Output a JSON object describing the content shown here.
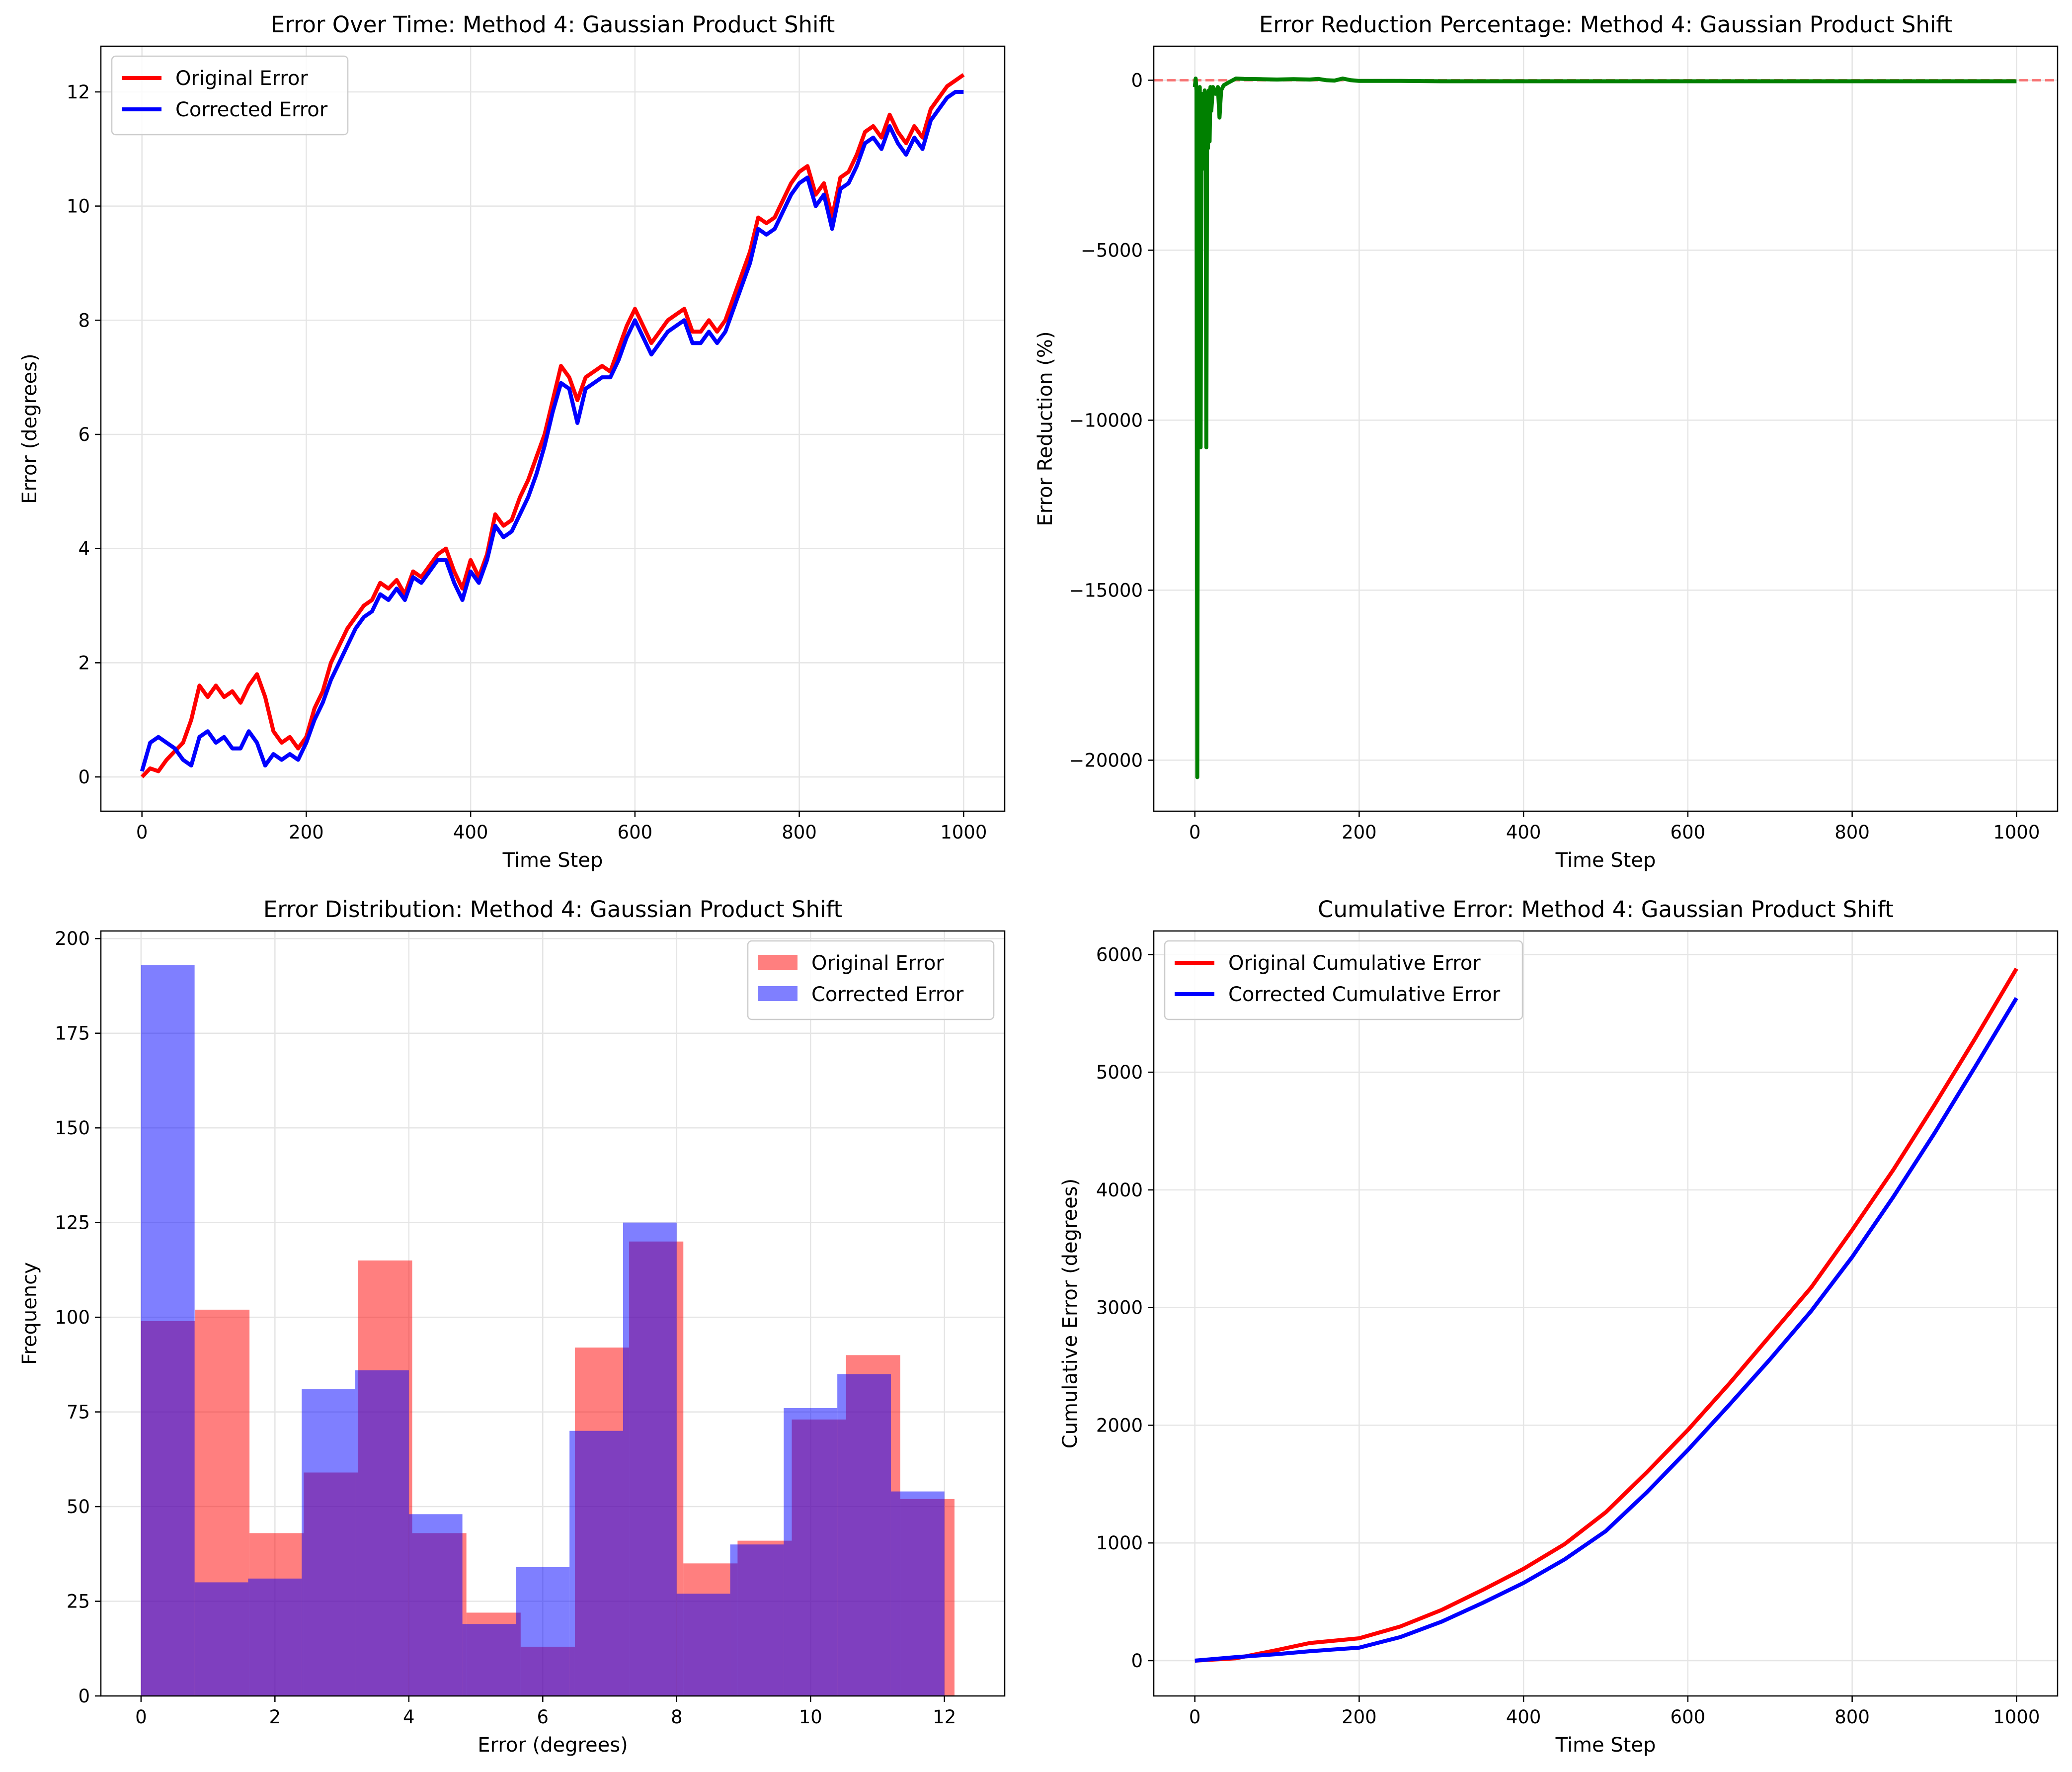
{
  "chart_data": [
    {
      "type": "line",
      "title": "Error Over Time: Method 4: Gaussian Product Shift",
      "xlabel": "Time Step",
      "ylabel": "Error (degrees)",
      "xlim": [
        -50,
        1050
      ],
      "ylim": [
        -0.6,
        12.8
      ],
      "xticks": [
        0,
        200,
        400,
        600,
        800,
        1000
      ],
      "yticks": [
        0,
        2,
        4,
        6,
        8,
        10,
        12
      ],
      "grid": true,
      "legend_position": "top-left",
      "series": [
        {
          "name": "Original Error",
          "color": "#ff0000",
          "x": [
            0,
            10,
            20,
            30,
            40,
            50,
            60,
            70,
            80,
            90,
            100,
            110,
            120,
            130,
            140,
            150,
            160,
            170,
            180,
            190,
            200,
            210,
            220,
            230,
            240,
            250,
            260,
            270,
            280,
            290,
            300,
            310,
            320,
            330,
            340,
            350,
            360,
            370,
            380,
            390,
            400,
            410,
            420,
            430,
            440,
            450,
            460,
            470,
            480,
            490,
            500,
            510,
            520,
            530,
            540,
            550,
            560,
            570,
            580,
            590,
            600,
            610,
            620,
            630,
            640,
            650,
            660,
            670,
            680,
            690,
            700,
            710,
            720,
            730,
            740,
            750,
            760,
            770,
            780,
            790,
            800,
            810,
            820,
            830,
            840,
            850,
            860,
            870,
            880,
            890,
            900,
            910,
            920,
            930,
            940,
            950,
            960,
            970,
            980,
            990,
            1000
          ],
          "values": [
            0.0,
            0.15,
            0.1,
            0.3,
            0.45,
            0.6,
            1.0,
            1.6,
            1.4,
            1.6,
            1.4,
            1.5,
            1.3,
            1.6,
            1.8,
            1.4,
            0.8,
            0.6,
            0.7,
            0.5,
            0.7,
            1.2,
            1.5,
            2.0,
            2.3,
            2.6,
            2.8,
            3.0,
            3.1,
            3.4,
            3.3,
            3.45,
            3.2,
            3.6,
            3.5,
            3.7,
            3.9,
            4.0,
            3.6,
            3.3,
            3.8,
            3.5,
            3.9,
            4.6,
            4.4,
            4.5,
            4.9,
            5.2,
            5.6,
            6.0,
            6.6,
            7.2,
            7.0,
            6.6,
            7.0,
            7.1,
            7.2,
            7.1,
            7.5,
            7.9,
            8.2,
            7.9,
            7.6,
            7.8,
            8.0,
            8.1,
            8.2,
            7.8,
            7.8,
            8.0,
            7.8,
            8.0,
            8.4,
            8.8,
            9.2,
            9.8,
            9.7,
            9.8,
            10.1,
            10.4,
            10.6,
            10.7,
            10.2,
            10.4,
            9.8,
            10.5,
            10.6,
            10.9,
            11.3,
            11.4,
            11.2,
            11.6,
            11.3,
            11.1,
            11.4,
            11.2,
            11.7,
            11.9,
            12.1,
            12.2,
            12.3
          ]
        },
        {
          "name": "Corrected Error",
          "color": "#0000ff",
          "x": [
            0,
            10,
            20,
            30,
            40,
            50,
            60,
            70,
            80,
            90,
            100,
            110,
            120,
            130,
            140,
            150,
            160,
            170,
            180,
            190,
            200,
            210,
            220,
            230,
            240,
            250,
            260,
            270,
            280,
            290,
            300,
            310,
            320,
            330,
            340,
            350,
            360,
            370,
            380,
            390,
            400,
            410,
            420,
            430,
            440,
            450,
            460,
            470,
            480,
            490,
            500,
            510,
            520,
            530,
            540,
            550,
            560,
            570,
            580,
            590,
            600,
            610,
            620,
            630,
            640,
            650,
            660,
            670,
            680,
            690,
            700,
            710,
            720,
            730,
            740,
            750,
            760,
            770,
            780,
            790,
            800,
            810,
            820,
            830,
            840,
            850,
            860,
            870,
            880,
            890,
            900,
            910,
            920,
            930,
            940,
            950,
            960,
            970,
            980,
            990,
            1000
          ],
          "values": [
            0.1,
            0.6,
            0.7,
            0.6,
            0.5,
            0.3,
            0.2,
            0.7,
            0.8,
            0.6,
            0.7,
            0.5,
            0.5,
            0.8,
            0.6,
            0.2,
            0.4,
            0.3,
            0.4,
            0.3,
            0.6,
            1.0,
            1.3,
            1.7,
            2.0,
            2.3,
            2.6,
            2.8,
            2.9,
            3.2,
            3.1,
            3.3,
            3.1,
            3.5,
            3.4,
            3.6,
            3.8,
            3.8,
            3.4,
            3.1,
            3.6,
            3.4,
            3.8,
            4.4,
            4.2,
            4.3,
            4.6,
            4.9,
            5.3,
            5.8,
            6.4,
            6.9,
            6.8,
            6.2,
            6.8,
            6.9,
            7.0,
            7.0,
            7.3,
            7.7,
            8.0,
            7.7,
            7.4,
            7.6,
            7.8,
            7.9,
            8.0,
            7.6,
            7.6,
            7.8,
            7.6,
            7.8,
            8.2,
            8.6,
            9.0,
            9.6,
            9.5,
            9.6,
            9.9,
            10.2,
            10.4,
            10.5,
            10.0,
            10.2,
            9.6,
            10.3,
            10.4,
            10.7,
            11.1,
            11.2,
            11.0,
            11.4,
            11.1,
            10.9,
            11.2,
            11.0,
            11.5,
            11.7,
            11.9,
            12.0,
            12.0
          ]
        }
      ]
    },
    {
      "type": "line",
      "title": "Error Reduction Percentage: Method 4: Gaussian Product Shift",
      "xlabel": "Time Step",
      "ylabel": "Error Reduction (%)",
      "xlim": [
        -50,
        1050
      ],
      "ylim": [
        -21500,
        1000
      ],
      "xticks": [
        0,
        200,
        400,
        600,
        800,
        1000
      ],
      "yticks": [
        -20000,
        -15000,
        -10000,
        -5000,
        0
      ],
      "grid": true,
      "reference_line": {
        "y": 0,
        "color": "#ff0000",
        "style": "dashed"
      },
      "series": [
        {
          "name": "",
          "color": "#008000",
          "x": [
            0,
            1,
            2,
            3,
            4,
            5,
            6,
            7,
            8,
            9,
            10,
            11,
            12,
            13,
            14,
            15,
            16,
            17,
            18,
            19,
            20,
            22,
            25,
            28,
            30,
            32,
            35,
            40,
            50,
            60,
            80,
            100,
            120,
            140,
            150,
            160,
            170,
            180,
            190,
            200,
            250,
            300,
            400,
            500,
            600,
            700,
            800,
            900,
            1000
          ],
          "values": [
            -200,
            50,
            -300,
            -20500,
            -3000,
            -500,
            -200,
            -10800,
            -1500,
            -400,
            -800,
            -2600,
            -300,
            -500,
            -10800,
            -400,
            -2000,
            -300,
            -1800,
            -200,
            -900,
            -200,
            -400,
            -200,
            -1100,
            -300,
            -150,
            -80,
            50,
            40,
            30,
            20,
            30,
            20,
            40,
            0,
            -10,
            50,
            0,
            -20,
            -20,
            -30,
            -30,
            -30,
            -30,
            -30,
            -30,
            -30,
            -30
          ]
        }
      ]
    },
    {
      "type": "bar",
      "title": "Error Distribution: Method 4: Gaussian Product Shift",
      "xlabel": "Error (degrees)",
      "ylabel": "Frequency",
      "xlim": [
        -0.6,
        12.9
      ],
      "ylim": [
        0,
        202
      ],
      "xticks": [
        0,
        2,
        4,
        6,
        8,
        10,
        12
      ],
      "yticks": [
        0,
        25,
        50,
        75,
        100,
        125,
        150,
        175,
        200
      ],
      "grid": true,
      "legend_position": "top-right",
      "series": [
        {
          "name": "Original Error",
          "color": "#ff0000",
          "alpha": 0.5,
          "bin_edges": [
            0,
            0.81,
            1.62,
            2.43,
            3.24,
            4.05,
            4.86,
            5.67,
            6.48,
            7.29,
            8.1,
            8.91,
            9.72,
            10.53,
            11.34,
            12.15
          ],
          "values": [
            99,
            102,
            43,
            59,
            115,
            43,
            22,
            13,
            92,
            120,
            35,
            41,
            73,
            90,
            52
          ]
        },
        {
          "name": "Corrected Error",
          "color": "#0000ff",
          "alpha": 0.5,
          "bin_edges": [
            0,
            0.8,
            1.6,
            2.4,
            3.2,
            4.0,
            4.8,
            5.6,
            6.4,
            7.2,
            8.0,
            8.8,
            9.6,
            10.4,
            11.2,
            12.0
          ],
          "values": [
            193,
            30,
            31,
            81,
            86,
            48,
            19,
            34,
            70,
            125,
            27,
            40,
            76,
            85,
            54
          ]
        }
      ]
    },
    {
      "type": "line",
      "title": "Cumulative Error: Method 4: Gaussian Product Shift",
      "xlabel": "Time Step",
      "ylabel": "Cumulative Error (degrees)",
      "xlim": [
        -50,
        1050
      ],
      "ylim": [
        -300,
        6200
      ],
      "xticks": [
        0,
        200,
        400,
        600,
        800,
        1000
      ],
      "yticks": [
        0,
        1000,
        2000,
        3000,
        4000,
        5000,
        6000
      ],
      "grid": true,
      "legend_position": "top-left",
      "series": [
        {
          "name": "Original Cumulative Error",
          "color": "#ff0000",
          "x": [
            0,
            50,
            100,
            140,
            200,
            250,
            300,
            350,
            400,
            450,
            500,
            550,
            600,
            650,
            700,
            750,
            800,
            850,
            900,
            950,
            1000
          ],
          "values": [
            0,
            20,
            90,
            150,
            190,
            290,
            430,
            600,
            780,
            990,
            1260,
            1600,
            1960,
            2350,
            2760,
            3170,
            3660,
            4170,
            4720,
            5290,
            5880
          ]
        },
        {
          "name": "Corrected Cumulative Error",
          "color": "#0000ff",
          "x": [
            0,
            50,
            100,
            140,
            200,
            250,
            300,
            350,
            400,
            450,
            500,
            550,
            600,
            650,
            700,
            750,
            800,
            850,
            900,
            950,
            1000
          ],
          "values": [
            0,
            30,
            55,
            80,
            110,
            200,
            330,
            490,
            660,
            860,
            1100,
            1430,
            1790,
            2170,
            2560,
            2970,
            3430,
            3940,
            4480,
            5050,
            5630
          ]
        }
      ]
    }
  ]
}
